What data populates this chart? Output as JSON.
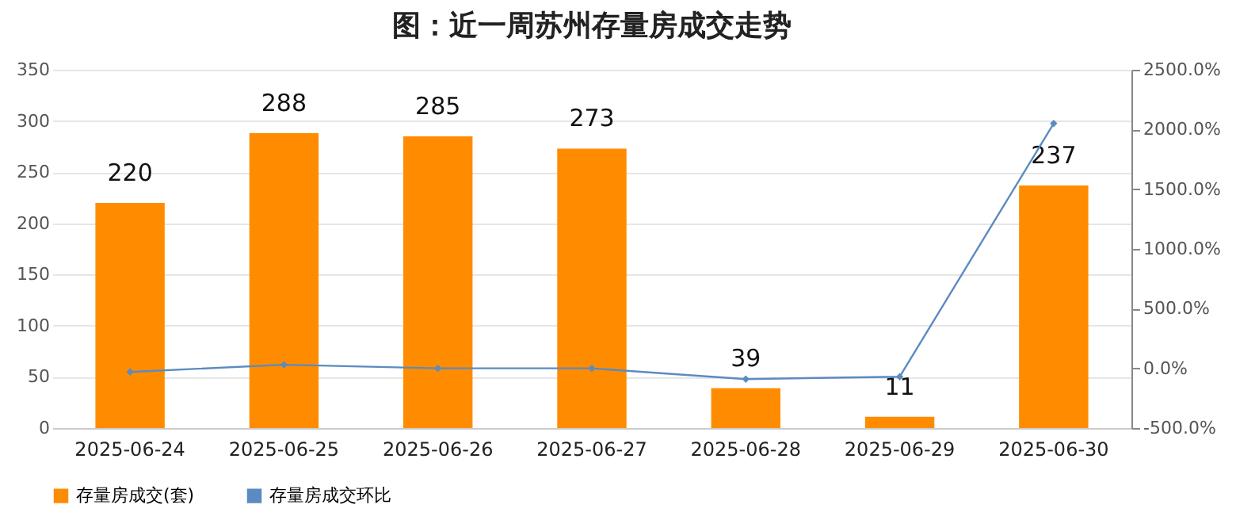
{
  "chart_data": {
    "type": "bar",
    "title": "图：近一周苏州存量房成交走势",
    "categories": [
      "2025-06-24",
      "2025-06-25",
      "2025-06-26",
      "2025-06-27",
      "2025-06-28",
      "2025-06-29",
      "2025-06-30"
    ],
    "series": [
      {
        "name": "存量房成交(套)",
        "color": "#ff8c00",
        "values": [
          220,
          288,
          285,
          273,
          39,
          11,
          237
        ],
        "value_labels": [
          "220",
          "288",
          "285",
          "273",
          "39",
          "11",
          "237"
        ]
      },
      {
        "name": "存量房成交环比",
        "type": "line",
        "axis": "y2",
        "color": "#5b8bc0",
        "marker": "diamond",
        "values": [
          -30,
          30,
          0,
          0,
          -90,
          -70,
          2050
        ]
      }
    ],
    "ylim": [
      0,
      350
    ],
    "yticks": [
      0,
      50,
      100,
      150,
      200,
      250,
      300,
      350
    ],
    "y2lim": [
      -500,
      2500
    ],
    "y2ticks": [
      {
        "value": -500,
        "label": "-500.0%"
      },
      {
        "value": 0,
        "label": "0.0%"
      },
      {
        "value": 500,
        "label": "500.0%"
      },
      {
        "value": 1000,
        "label": "1000.0%"
      },
      {
        "value": 1500,
        "label": "1500.0%"
      },
      {
        "value": 2000,
        "label": "2000.0%"
      },
      {
        "value": 2500,
        "label": "2500.0%"
      }
    ],
    "grid": "y",
    "legend": "bottom"
  }
}
